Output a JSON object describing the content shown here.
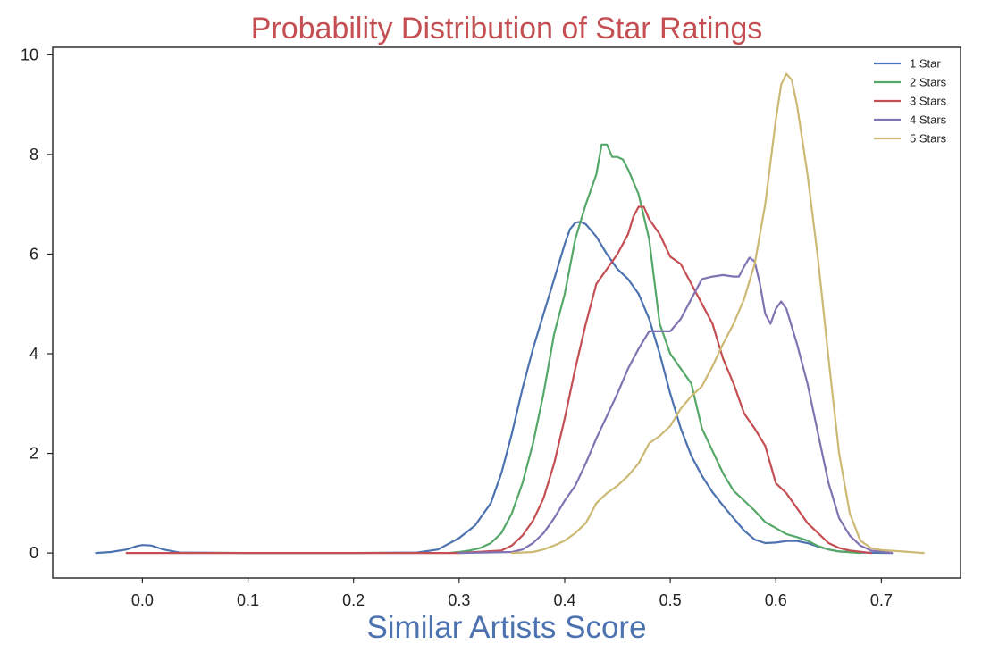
{
  "chart_data": {
    "type": "line",
    "title": "Probability Distribution of Star Ratings",
    "xlabel": "Similar Artists Score",
    "ylabel": "",
    "xlim": [
      -0.085,
      0.775
    ],
    "ylim": [
      -0.5,
      10.15
    ],
    "xticks": [
      "0.0",
      "0.1",
      "0.2",
      "0.3",
      "0.4",
      "0.5",
      "0.6",
      "0.7"
    ],
    "yticks": [
      "0",
      "2",
      "4",
      "6",
      "8",
      "10"
    ],
    "grid": false,
    "legend_position": "top-right",
    "title_color": "#C44E52",
    "xlabel_color": "#4C72B0",
    "series": [
      {
        "name": "1 Star",
        "color": "#4C72B0",
        "points": [
          [
            -0.044,
            0.0
          ],
          [
            -0.03,
            0.02
          ],
          [
            -0.015,
            0.07
          ],
          [
            -0.005,
            0.14
          ],
          [
            0.0,
            0.16
          ],
          [
            0.008,
            0.15
          ],
          [
            0.02,
            0.07
          ],
          [
            0.035,
            0.01
          ],
          [
            0.1,
            0.0
          ],
          [
            0.2,
            0.0
          ],
          [
            0.26,
            0.01
          ],
          [
            0.28,
            0.07
          ],
          [
            0.3,
            0.3
          ],
          [
            0.315,
            0.55
          ],
          [
            0.33,
            1.0
          ],
          [
            0.34,
            1.6
          ],
          [
            0.35,
            2.4
          ],
          [
            0.36,
            3.3
          ],
          [
            0.37,
            4.1
          ],
          [
            0.38,
            4.8
          ],
          [
            0.39,
            5.5
          ],
          [
            0.4,
            6.2
          ],
          [
            0.405,
            6.5
          ],
          [
            0.41,
            6.63
          ],
          [
            0.415,
            6.65
          ],
          [
            0.42,
            6.6
          ],
          [
            0.43,
            6.35
          ],
          [
            0.44,
            6.0
          ],
          [
            0.45,
            5.7
          ],
          [
            0.46,
            5.5
          ],
          [
            0.47,
            5.2
          ],
          [
            0.48,
            4.7
          ],
          [
            0.49,
            4.0
          ],
          [
            0.5,
            3.2
          ],
          [
            0.51,
            2.5
          ],
          [
            0.52,
            1.95
          ],
          [
            0.53,
            1.55
          ],
          [
            0.54,
            1.22
          ],
          [
            0.55,
            0.95
          ],
          [
            0.56,
            0.7
          ],
          [
            0.57,
            0.45
          ],
          [
            0.58,
            0.27
          ],
          [
            0.59,
            0.2
          ],
          [
            0.6,
            0.21
          ],
          [
            0.61,
            0.24
          ],
          [
            0.62,
            0.24
          ],
          [
            0.63,
            0.2
          ],
          [
            0.64,
            0.13
          ],
          [
            0.65,
            0.07
          ],
          [
            0.66,
            0.03
          ],
          [
            0.68,
            0.01
          ],
          [
            0.71,
            0.0
          ]
        ]
      },
      {
        "name": "2 Stars",
        "color": "#55A868",
        "points": [
          [
            0.29,
            0.0
          ],
          [
            0.3,
            0.02
          ],
          [
            0.31,
            0.05
          ],
          [
            0.32,
            0.1
          ],
          [
            0.33,
            0.2
          ],
          [
            0.34,
            0.4
          ],
          [
            0.35,
            0.8
          ],
          [
            0.36,
            1.4
          ],
          [
            0.37,
            2.2
          ],
          [
            0.38,
            3.2
          ],
          [
            0.39,
            4.4
          ],
          [
            0.4,
            5.2
          ],
          [
            0.41,
            6.3
          ],
          [
            0.42,
            7.0
          ],
          [
            0.43,
            7.6
          ],
          [
            0.435,
            8.2
          ],
          [
            0.44,
            8.2
          ],
          [
            0.445,
            7.95
          ],
          [
            0.45,
            7.95
          ],
          [
            0.455,
            7.9
          ],
          [
            0.46,
            7.7
          ],
          [
            0.47,
            7.2
          ],
          [
            0.48,
            6.3
          ],
          [
            0.49,
            4.6
          ],
          [
            0.5,
            4.0
          ],
          [
            0.51,
            3.7
          ],
          [
            0.52,
            3.4
          ],
          [
            0.53,
            2.5
          ],
          [
            0.54,
            2.05
          ],
          [
            0.55,
            1.6
          ],
          [
            0.56,
            1.25
          ],
          [
            0.57,
            1.05
          ],
          [
            0.58,
            0.85
          ],
          [
            0.59,
            0.62
          ],
          [
            0.6,
            0.5
          ],
          [
            0.61,
            0.38
          ],
          [
            0.62,
            0.32
          ],
          [
            0.63,
            0.25
          ],
          [
            0.64,
            0.14
          ],
          [
            0.65,
            0.07
          ],
          [
            0.66,
            0.03
          ],
          [
            0.68,
            0.0
          ]
        ]
      },
      {
        "name": "3 Stars",
        "color": "#C44E52",
        "points": [
          [
            -0.015,
            0.0
          ],
          [
            0.1,
            0.0
          ],
          [
            0.2,
            0.0
          ],
          [
            0.3,
            0.0
          ],
          [
            0.34,
            0.05
          ],
          [
            0.35,
            0.15
          ],
          [
            0.36,
            0.35
          ],
          [
            0.37,
            0.65
          ],
          [
            0.38,
            1.1
          ],
          [
            0.39,
            1.8
          ],
          [
            0.4,
            2.7
          ],
          [
            0.41,
            3.7
          ],
          [
            0.42,
            4.6
          ],
          [
            0.43,
            5.4
          ],
          [
            0.44,
            5.7
          ],
          [
            0.45,
            6.0
          ],
          [
            0.46,
            6.4
          ],
          [
            0.465,
            6.75
          ],
          [
            0.47,
            6.95
          ],
          [
            0.475,
            6.95
          ],
          [
            0.48,
            6.7
          ],
          [
            0.49,
            6.4
          ],
          [
            0.5,
            5.95
          ],
          [
            0.51,
            5.8
          ],
          [
            0.52,
            5.4
          ],
          [
            0.53,
            5.0
          ],
          [
            0.54,
            4.6
          ],
          [
            0.55,
            3.9
          ],
          [
            0.56,
            3.4
          ],
          [
            0.57,
            2.8
          ],
          [
            0.58,
            2.5
          ],
          [
            0.59,
            2.15
          ],
          [
            0.6,
            1.4
          ],
          [
            0.61,
            1.2
          ],
          [
            0.62,
            0.9
          ],
          [
            0.63,
            0.6
          ],
          [
            0.64,
            0.4
          ],
          [
            0.65,
            0.2
          ],
          [
            0.66,
            0.1
          ],
          [
            0.67,
            0.05
          ],
          [
            0.69,
            0.0
          ]
        ]
      },
      {
        "name": "4 Stars",
        "color": "#8172B2",
        "points": [
          [
            0.3,
            0.0
          ],
          [
            0.35,
            0.02
          ],
          [
            0.36,
            0.07
          ],
          [
            0.37,
            0.2
          ],
          [
            0.38,
            0.4
          ],
          [
            0.39,
            0.7
          ],
          [
            0.4,
            1.05
          ],
          [
            0.41,
            1.35
          ],
          [
            0.42,
            1.8
          ],
          [
            0.43,
            2.3
          ],
          [
            0.44,
            2.75
          ],
          [
            0.45,
            3.2
          ],
          [
            0.46,
            3.7
          ],
          [
            0.47,
            4.1
          ],
          [
            0.48,
            4.45
          ],
          [
            0.49,
            4.45
          ],
          [
            0.5,
            4.45
          ],
          [
            0.51,
            4.7
          ],
          [
            0.52,
            5.1
          ],
          [
            0.53,
            5.5
          ],
          [
            0.54,
            5.55
          ],
          [
            0.55,
            5.58
          ],
          [
            0.56,
            5.55
          ],
          [
            0.565,
            5.55
          ],
          [
            0.57,
            5.75
          ],
          [
            0.575,
            5.93
          ],
          [
            0.58,
            5.85
          ],
          [
            0.585,
            5.4
          ],
          [
            0.59,
            4.8
          ],
          [
            0.595,
            4.6
          ],
          [
            0.6,
            4.9
          ],
          [
            0.605,
            5.05
          ],
          [
            0.61,
            4.9
          ],
          [
            0.62,
            4.2
          ],
          [
            0.63,
            3.4
          ],
          [
            0.64,
            2.4
          ],
          [
            0.65,
            1.4
          ],
          [
            0.66,
            0.7
          ],
          [
            0.67,
            0.35
          ],
          [
            0.68,
            0.15
          ],
          [
            0.69,
            0.05
          ],
          [
            0.71,
            0.0
          ]
        ]
      },
      {
        "name": "5 Stars",
        "color": "#CCB974",
        "points": [
          [
            0.35,
            0.0
          ],
          [
            0.37,
            0.02
          ],
          [
            0.38,
            0.07
          ],
          [
            0.39,
            0.15
          ],
          [
            0.4,
            0.25
          ],
          [
            0.41,
            0.4
          ],
          [
            0.42,
            0.6
          ],
          [
            0.43,
            1.0
          ],
          [
            0.44,
            1.2
          ],
          [
            0.45,
            1.35
          ],
          [
            0.46,
            1.55
          ],
          [
            0.47,
            1.8
          ],
          [
            0.48,
            2.2
          ],
          [
            0.49,
            2.35
          ],
          [
            0.5,
            2.55
          ],
          [
            0.51,
            2.9
          ],
          [
            0.52,
            3.15
          ],
          [
            0.53,
            3.35
          ],
          [
            0.54,
            3.75
          ],
          [
            0.55,
            4.2
          ],
          [
            0.56,
            4.6
          ],
          [
            0.57,
            5.1
          ],
          [
            0.58,
            5.8
          ],
          [
            0.59,
            7.0
          ],
          [
            0.6,
            8.7
          ],
          [
            0.605,
            9.4
          ],
          [
            0.61,
            9.62
          ],
          [
            0.615,
            9.5
          ],
          [
            0.62,
            9.0
          ],
          [
            0.63,
            7.6
          ],
          [
            0.64,
            5.9
          ],
          [
            0.65,
            3.9
          ],
          [
            0.66,
            2.0
          ],
          [
            0.67,
            0.8
          ],
          [
            0.68,
            0.25
          ],
          [
            0.69,
            0.1
          ],
          [
            0.7,
            0.06
          ],
          [
            0.72,
            0.03
          ],
          [
            0.74,
            0.0
          ]
        ]
      }
    ]
  }
}
